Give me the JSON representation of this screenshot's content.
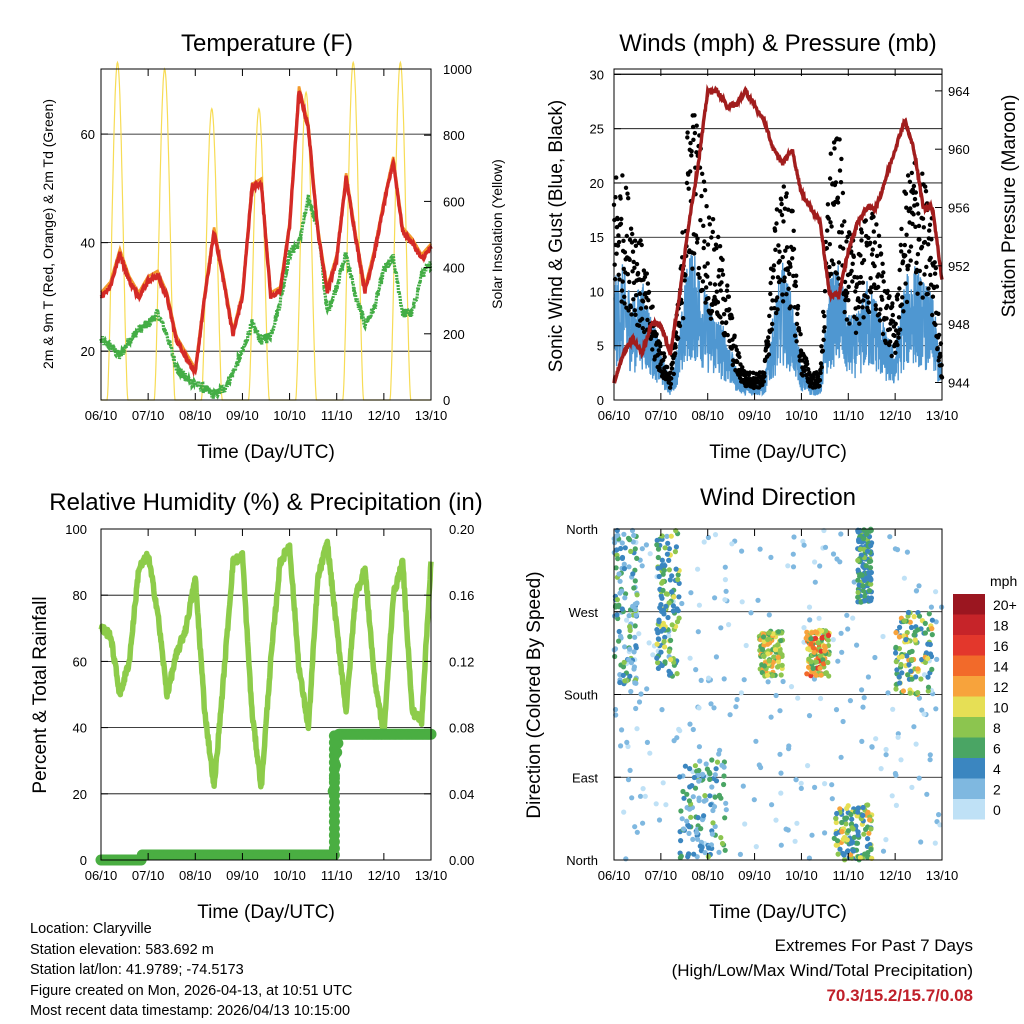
{
  "charts": {
    "temperature": {
      "title": "Temperature (F)",
      "ylabel_left": "2m & 9m T (Red, Orange) & 2m Td (Green)",
      "ylabel_right": "Solar Insolation (Yellow)",
      "xlabel": "Time (Day/UTC)",
      "x_ticks": [
        "06/10",
        "07/10",
        "08/10",
        "09/10",
        "10/10",
        "11/10",
        "12/10",
        "13/10"
      ],
      "y_ticks": [
        "20",
        "40",
        "60"
      ],
      "y2_ticks": [
        "0",
        "200",
        "400",
        "600",
        "800",
        "1000"
      ],
      "colors": {
        "t2m": "#d42a26",
        "t9m": "#f39a2b",
        "td": "#43ad45",
        "solar": "#f7dc55"
      }
    },
    "winds": {
      "title": "Winds (mph) & Pressure (mb)",
      "ylabel_left": "Sonic Wind & Gust (Blue, Black)",
      "ylabel_right": "Station Pressure (Maroon)",
      "xlabel": "Time (Day/UTC)",
      "x_ticks": [
        "06/10",
        "07/10",
        "08/10",
        "09/10",
        "10/10",
        "11/10",
        "12/10",
        "13/10"
      ],
      "y_ticks": [
        "0",
        "5",
        "10",
        "15",
        "20",
        "25",
        "30"
      ],
      "y2_ticks": [
        "944",
        "948",
        "952",
        "956",
        "960",
        "964"
      ],
      "colors": {
        "wind": "#4f97d1",
        "gust": "#000000",
        "pressure": "#a11d1d"
      }
    },
    "humidity": {
      "title": "Relative Humidity (%) & Precipitation (in)",
      "ylabel_left": "Percent & Total Rainfall",
      "xlabel": "Time (Day/UTC)",
      "x_ticks": [
        "06/10",
        "07/10",
        "08/10",
        "09/10",
        "10/10",
        "11/10",
        "12/10",
        "13/10"
      ],
      "y_ticks": [
        "0",
        "20",
        "40",
        "60",
        "80",
        "100"
      ],
      "y2_ticks": [
        "0.00",
        "0.04",
        "0.08",
        "0.12",
        "0.16",
        "0.20"
      ],
      "colors": {
        "rh": "#8dcc4a",
        "precip": "#4aae42"
      }
    },
    "direction": {
      "title": "Wind Direction",
      "ylabel_left": "Direction (Colored By Speed)",
      "xlabel": "Time (Day/UTC)",
      "x_ticks": [
        "06/10",
        "07/10",
        "08/10",
        "09/10",
        "10/10",
        "11/10",
        "12/10",
        "13/10"
      ],
      "y_ticks": [
        "North",
        "East",
        "South",
        "West",
        "North"
      ],
      "legend_title": "mph",
      "legend_labels": [
        "20+",
        "18",
        "16",
        "14",
        "12",
        "10",
        "8",
        "6",
        "4",
        "2",
        "0"
      ],
      "legend_colors": [
        "#9b1620",
        "#c62429",
        "#e3372c",
        "#f26a2a",
        "#f7a33c",
        "#e6df55",
        "#8cc54f",
        "#4aa564",
        "#3b86c0",
        "#7fb8e0",
        "#bfe1f6"
      ]
    }
  },
  "chart_data": [
    {
      "type": "line",
      "name": "temperature",
      "title": "Temperature (F)",
      "xlabel": "Time (Day/UTC)",
      "ylabel": "2m & 9m T (Red, Orange) & 2m Td (Green)",
      "y2label": "Solar Insolation (Yellow)",
      "xlim": [
        0,
        7
      ],
      "ylim": [
        11,
        72
      ],
      "y2lim": [
        0,
        1000
      ],
      "x": [
        0,
        0.2,
        0.4,
        0.6,
        0.8,
        1.0,
        1.2,
        1.4,
        1.6,
        1.8,
        2.0,
        2.2,
        2.4,
        2.6,
        2.8,
        3.0,
        3.2,
        3.4,
        3.6,
        3.8,
        4.0,
        4.2,
        4.4,
        4.6,
        4.8,
        5.0,
        5.2,
        5.4,
        5.6,
        5.8,
        6.0,
        6.2,
        6.4,
        6.6,
        6.8,
        7.0
      ],
      "series": [
        {
          "name": "2m T",
          "values": [
            30,
            32,
            38,
            33,
            30,
            33,
            34,
            30,
            22,
            19,
            16,
            30,
            42,
            33,
            23,
            30,
            50,
            51,
            30,
            31,
            43,
            68,
            61,
            42,
            31,
            37,
            52,
            41,
            31,
            38,
            47,
            55,
            42,
            40,
            37,
            39
          ]
        },
        {
          "name": "2m Td",
          "values": [
            22,
            21,
            19,
            22,
            24,
            25,
            27,
            23,
            17,
            15,
            14,
            13,
            12,
            13,
            16,
            20,
            25,
            22,
            23,
            29,
            38,
            40,
            48,
            43,
            27,
            32,
            38,
            30,
            25,
            28,
            35,
            37,
            27,
            27,
            34,
            36
          ]
        },
        {
          "name": "Solar Insolation",
          "peaks_x": [
            0.35,
            1.35,
            2.35,
            3.35,
            4.35,
            5.35,
            6.35
          ],
          "peaks_y": [
            1020,
            1000,
            880,
            880,
            930,
            1020,
            1020
          ]
        }
      ]
    },
    {
      "type": "line",
      "name": "winds",
      "title": "Winds (mph) & Pressure (mb)",
      "xlabel": "Time (Day/UTC)",
      "ylabel": "Sonic Wind & Gust (Blue, Black)",
      "y2label": "Station Pressure (Maroon)",
      "xlim": [
        0,
        7
      ],
      "ylim": [
        0,
        30.5
      ],
      "y2lim": [
        942.8,
        965.5
      ],
      "x": [
        0,
        0.2,
        0.4,
        0.6,
        0.8,
        1.0,
        1.2,
        1.4,
        1.6,
        1.8,
        2.0,
        2.2,
        2.4,
        2.6,
        2.8,
        3.0,
        3.2,
        3.4,
        3.6,
        3.8,
        4.0,
        4.2,
        4.4,
        4.6,
        4.8,
        5.0,
        5.2,
        5.4,
        5.6,
        5.8,
        6.0,
        6.2,
        6.4,
        6.6,
        6.8,
        7.0
      ],
      "series": [
        {
          "name": "Wind",
          "values": [
            7,
            8,
            6,
            7,
            5,
            3,
            1,
            4,
            9,
            8,
            6,
            5,
            4,
            2,
            1,
            1,
            1,
            5,
            8,
            6,
            2,
            1,
            1,
            7,
            8,
            5,
            5,
            7,
            6,
            4,
            3,
            7,
            8,
            7,
            6,
            2
          ]
        },
        {
          "name": "Gust",
          "values": [
            17,
            16,
            14,
            11,
            7,
            4,
            2,
            8,
            22,
            20,
            14,
            12,
            9,
            4,
            2,
            2,
            2,
            12,
            16,
            14,
            4,
            2,
            2,
            18,
            19,
            12,
            11,
            14,
            13,
            9,
            6,
            15,
            18,
            16,
            13,
            3
          ]
        },
        {
          "name": "Pressure",
          "values": [
            944,
            946,
            947,
            946,
            948,
            948,
            946,
            950,
            955,
            959,
            964,
            964,
            963,
            963,
            964,
            963,
            962,
            960,
            959,
            960,
            957,
            956,
            955,
            950,
            950,
            953,
            955,
            956,
            956,
            958,
            960,
            962,
            960,
            956,
            956,
            951
          ]
        }
      ]
    },
    {
      "type": "line",
      "name": "humidity",
      "title": "Relative Humidity (%) & Precipitation (in)",
      "xlabel": "Time (Day/UTC)",
      "ylabel": "Percent & Total Rainfall",
      "xlim": [
        0,
        7
      ],
      "ylim": [
        0,
        100
      ],
      "y2lim": [
        0,
        0.2
      ],
      "x": [
        0,
        0.2,
        0.4,
        0.6,
        0.8,
        1.0,
        1.2,
        1.4,
        1.6,
        1.8,
        2.0,
        2.2,
        2.4,
        2.6,
        2.8,
        3.0,
        3.2,
        3.4,
        3.6,
        3.8,
        4.0,
        4.2,
        4.4,
        4.6,
        4.8,
        5.0,
        5.2,
        5.4,
        5.6,
        5.8,
        6.0,
        6.2,
        6.4,
        6.6,
        6.8,
        7.0
      ],
      "series": [
        {
          "name": "Relative Humidity",
          "values": [
            70,
            68,
            50,
            60,
            88,
            92,
            75,
            50,
            62,
            70,
            85,
            45,
            22,
            55,
            90,
            92,
            45,
            22,
            60,
            90,
            95,
            58,
            40,
            85,
            96,
            70,
            45,
            80,
            88,
            55,
            38,
            80,
            90,
            45,
            42,
            90
          ]
        },
        {
          "name": "Total Precipitation",
          "x": [
            0,
            0.85,
            0.86,
            4.9,
            4.92,
            5.0,
            5.05,
            7.0
          ],
          "values": [
            0,
            0,
            0.003,
            0.003,
            0.04,
            0.065,
            0.076,
            0.076
          ]
        }
      ]
    },
    {
      "type": "scatter",
      "name": "direction",
      "title": "Wind Direction",
      "xlabel": "Time (Day/UTC)",
      "ylabel": "Direction (Colored By Speed)",
      "xlim": [
        0,
        7
      ],
      "ylim": [
        0,
        360
      ],
      "y_categories": [
        "North",
        "East",
        "South",
        "West",
        "North"
      ],
      "color_scale_mph": [
        0,
        2,
        4,
        6,
        8,
        10,
        12,
        14,
        16,
        18,
        20
      ],
      "clusters": [
        {
          "x_start": 0.0,
          "x_end": 0.5,
          "dir_min": 190,
          "dir_max": 360,
          "speed_min": 2,
          "speed_max": 8
        },
        {
          "x_start": 0.9,
          "x_end": 1.4,
          "dir_min": 200,
          "dir_max": 360,
          "speed_min": 3,
          "speed_max": 10
        },
        {
          "x_start": 1.4,
          "x_end": 2.4,
          "dir_min": 0,
          "dir_max": 110,
          "speed_min": 2,
          "speed_max": 8
        },
        {
          "x_start": 3.1,
          "x_end": 3.6,
          "dir_min": 200,
          "dir_max": 250,
          "speed_min": 6,
          "speed_max": 13
        },
        {
          "x_start": 4.1,
          "x_end": 4.6,
          "dir_min": 200,
          "dir_max": 250,
          "speed_min": 6,
          "speed_max": 16
        },
        {
          "x_start": 4.7,
          "x_end": 5.5,
          "dir_min": 0,
          "dir_max": 60,
          "speed_min": 3,
          "speed_max": 12
        },
        {
          "x_start": 5.2,
          "x_end": 5.5,
          "dir_min": 280,
          "dir_max": 360,
          "speed_min": 3,
          "speed_max": 8
        },
        {
          "x_start": 6.0,
          "x_end": 6.8,
          "dir_min": 180,
          "dir_max": 270,
          "speed_min": 4,
          "speed_max": 12
        }
      ]
    }
  ],
  "info": {
    "location": "Location: Claryville",
    "elevation": "Station elevation: 583.692 m",
    "latlon": "Station lat/lon: 41.9789; -74.5173",
    "created": "Figure created on Mon, 2026-04-13, at 10:51 UTC",
    "recent": "Most recent data timestamp: 2026/04/13 10:15:00"
  },
  "extremes": {
    "heading": "Extremes For Past 7 Days",
    "subheading": "(High/Low/Max Wind/Total Precipitation)",
    "values": "70.3/15.2/15.7/0.08"
  }
}
